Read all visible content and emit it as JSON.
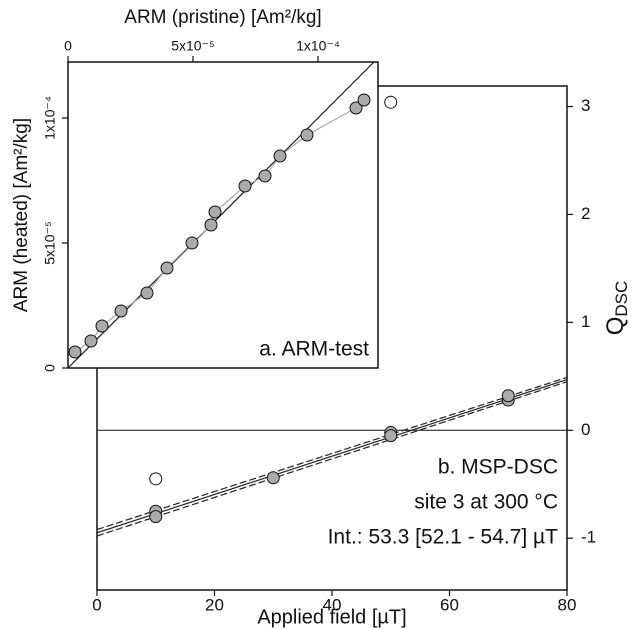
{
  "chart_data": [
    {
      "type": "scatter",
      "xlabel": "Applied field [µT]",
      "ylabel": "Q",
      "ylabel_sub": "DSC",
      "yaxis_side": "right",
      "annotations": [
        "b. MSP-DSC",
        "site 3 at 300 °C",
        "Int.: 53.3 [52.1 - 54.7] µT"
      ],
      "xlim": [
        0,
        80
      ],
      "xticks": [
        0,
        20,
        40,
        60,
        80
      ],
      "ylim": [
        -1.48,
        3.19
      ],
      "yticks": [
        -1,
        0,
        1,
        2,
        3
      ],
      "zero_line": true,
      "series": [
        {
          "style": "dashed",
          "color": "#222222",
          "x": [
            0,
            80
          ],
          "values": [
            -0.92,
            0.49
          ]
        },
        {
          "style": "dashed",
          "color": "#222222",
          "x": [
            0,
            80
          ],
          "values": [
            -0.98,
            0.45
          ]
        },
        {
          "style": "line",
          "color": "#222222",
          "x": [
            0,
            80
          ],
          "values": [
            -0.95,
            0.47
          ]
        },
        {
          "style": "marker",
          "color": "#aaaaaa",
          "x": [
            10,
            10,
            30,
            50,
            50,
            70,
            70
          ],
          "values": [
            -0.75,
            -0.8,
            -0.44,
            -0.02,
            -0.05,
            0.28,
            0.32
          ]
        },
        {
          "style": "marker",
          "color": "#ffffff",
          "x": [
            10,
            50
          ],
          "values": [
            -0.45,
            3.04
          ]
        }
      ]
    },
    {
      "type": "scatter",
      "xlabel": "ARM (pristine) [Am²/kg]",
      "ylabel": "ARM (heated) [Am²/kg]",
      "annotations": [
        "a. ARM-test"
      ],
      "xaxis_side": "top",
      "xlim": [
        0,
        0.000124
      ],
      "xticks": [
        0,
        {
          "value": 5e-05,
          "label": "5x10⁻⁵"
        },
        {
          "value": 0.0001,
          "label": "1x10⁻⁴"
        }
      ],
      "ylim": [
        0,
        0.0001224
      ],
      "yticks": [
        0,
        {
          "value": 5e-05,
          "label": "5x10⁻⁵"
        },
        {
          "value": 0.0001,
          "label": "1x10⁻⁴"
        }
      ],
      "series": [
        {
          "style": "line",
          "color": "#222222",
          "x": [
            0,
            0.0001224
          ],
          "values": [
            0,
            0.0001224
          ]
        },
        {
          "style": "line+marker",
          "color": "#aaaaaa",
          "x": [
            2.8e-06,
            9.2e-06,
            1.36e-05,
            2.12e-05,
            3.16e-05,
            3.96e-05,
            4.96e-05,
            5.72e-05,
            5.88e-05,
            7.08e-05,
            7.88e-05,
            8.48e-05,
            9.56e-05,
            0.0001152,
            0.0001184
          ],
          "values": [
            6.4e-06,
            1.08e-05,
            1.68e-05,
            2.28e-05,
            3e-05,
            4e-05,
            5e-05,
            5.72e-05,
            6.24e-05,
            7.28e-05,
            7.68e-05,
            8.48e-05,
            9.32e-05,
            0.000104,
            0.0001072
          ]
        }
      ]
    }
  ]
}
